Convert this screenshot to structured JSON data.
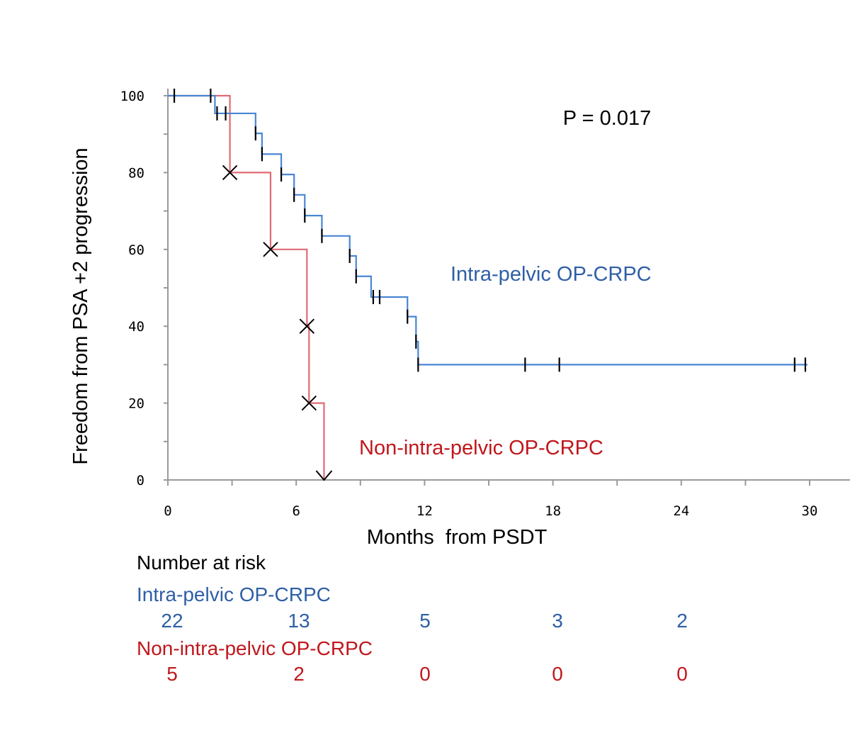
{
  "chart_data": {
    "type": "line",
    "subtype": "kaplan-meier",
    "xlabel": "Months  from PSDT",
    "ylabel": "Freedom from PSA +2 progression",
    "xlim": [
      0,
      31
    ],
    "ylim": [
      0,
      100
    ],
    "x_ticks": [
      0,
      6,
      12,
      18,
      24,
      30
    ],
    "x_tick_labels": [
      "0",
      "6",
      "12",
      "18",
      "24",
      "30"
    ],
    "y_ticks": [
      0,
      20,
      40,
      60,
      80,
      100
    ],
    "y_tick_labels": [
      "0",
      "20",
      "40",
      "60",
      "80",
      "100"
    ],
    "annotation": "P = 0.017",
    "series": [
      {
        "name": "Intra-pelvic OP-CRPC",
        "color": "#4a86d4",
        "label_color": "#2e5fa6",
        "steps": [
          [
            0,
            100
          ],
          [
            2.2,
            95.4
          ],
          [
            4.1,
            90.2
          ],
          [
            4.4,
            84.8
          ],
          [
            5.3,
            79.5
          ],
          [
            5.9,
            74.2
          ],
          [
            6.4,
            68.8
          ],
          [
            7.2,
            63.5
          ],
          [
            8.5,
            58.3
          ],
          [
            8.8,
            53.0
          ],
          [
            9.5,
            47.6
          ],
          [
            11.2,
            42.5
          ],
          [
            11.6,
            36.0
          ],
          [
            11.7,
            30.0
          ],
          [
            29.9,
            30.0
          ]
        ],
        "censored": [
          [
            0.3,
            100
          ],
          [
            2.0,
            100
          ],
          [
            2.3,
            95.4
          ],
          [
            2.7,
            95.4
          ],
          [
            4.1,
            90.2
          ],
          [
            4.4,
            84.8
          ],
          [
            5.3,
            79.5
          ],
          [
            5.9,
            74.2
          ],
          [
            6.4,
            68.8
          ],
          [
            7.2,
            63.5
          ],
          [
            8.5,
            58.3
          ],
          [
            8.8,
            53.0
          ],
          [
            9.6,
            47.6
          ],
          [
            9.9,
            47.6
          ],
          [
            11.2,
            42.5
          ],
          [
            11.6,
            36.0
          ],
          [
            11.7,
            30.0
          ],
          [
            16.7,
            30.0
          ],
          [
            18.3,
            30.0
          ],
          [
            29.3,
            30.0
          ],
          [
            29.8,
            30.0
          ]
        ]
      },
      {
        "name": "Non-intra-pelvic OP-CRPC",
        "color": "#e06a74",
        "label_color": "#c0171c",
        "steps": [
          [
            0,
            100
          ],
          [
            2.9,
            80
          ],
          [
            4.8,
            60
          ],
          [
            6.5,
            40
          ],
          [
            6.6,
            20
          ],
          [
            7.3,
            0
          ]
        ],
        "events": [
          [
            2.9,
            80
          ],
          [
            4.8,
            60
          ],
          [
            6.5,
            40
          ],
          [
            6.6,
            20
          ]
        ],
        "end_marker": [
          7.3,
          0
        ]
      }
    ]
  },
  "risk_table": {
    "title": "Number at risk",
    "groups": [
      {
        "name": "Intra-pelvic OP-CRPC",
        "color": "#2e5fa6",
        "counts": [
          "22",
          "13",
          "5",
          "3",
          "2"
        ]
      },
      {
        "name": "Non-intra-pelvic OP-CRPC",
        "color": "#c0171c",
        "counts": [
          "5",
          "2",
          "0",
          "0",
          "0"
        ]
      }
    ]
  }
}
